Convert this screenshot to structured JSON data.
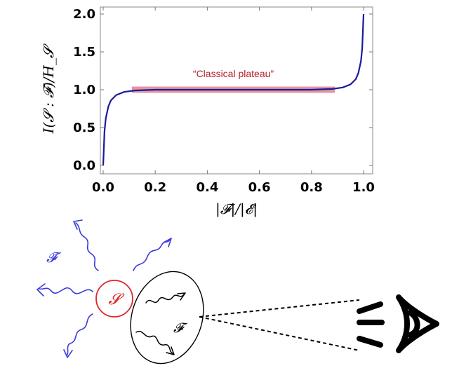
{
  "chart_data": {
    "type": "line",
    "title": "",
    "xlabel": "|𝓕|/|𝓔|",
    "ylabel": "I(𝓢 : 𝓕)/H_𝓢",
    "xlim": [
      0.0,
      1.0
    ],
    "ylim": [
      0.0,
      2.0
    ],
    "x_ticks": [
      "0.0",
      "0.2",
      "0.4",
      "0.6",
      "0.8",
      "1.0"
    ],
    "y_ticks": [
      "0.0",
      "0.5",
      "1.0",
      "1.5",
      "2.0"
    ],
    "grid": false,
    "series": [
      {
        "x": [
          0.0,
          0.005,
          0.01,
          0.02,
          0.03,
          0.05,
          0.08,
          0.12,
          0.2,
          0.3,
          0.5,
          0.7,
          0.8,
          0.88,
          0.92,
          0.95,
          0.97,
          0.98,
          0.99,
          0.995,
          1.0
        ],
        "values": [
          0.0,
          0.45,
          0.62,
          0.78,
          0.86,
          0.93,
          0.97,
          0.99,
          1.0,
          1.0,
          1.0,
          1.0,
          1.0,
          1.01,
          1.03,
          1.07,
          1.14,
          1.22,
          1.38,
          1.55,
          2.0
        ],
        "color": "#1a1a9c"
      }
    ],
    "plateau": {
      "x_range": [
        0.11,
        0.89
      ],
      "y": 1.0,
      "color": "#e0909a"
    },
    "annotations": [
      "“Classical plateau”"
    ]
  },
  "diagram": {
    "environment_label": "𝓕̄",
    "system_label": "𝓢",
    "fragment_label": "𝓕",
    "colors": {
      "system": "#e0262c",
      "environment": "#3a3adb",
      "curve": "#1a1a9c"
    }
  }
}
